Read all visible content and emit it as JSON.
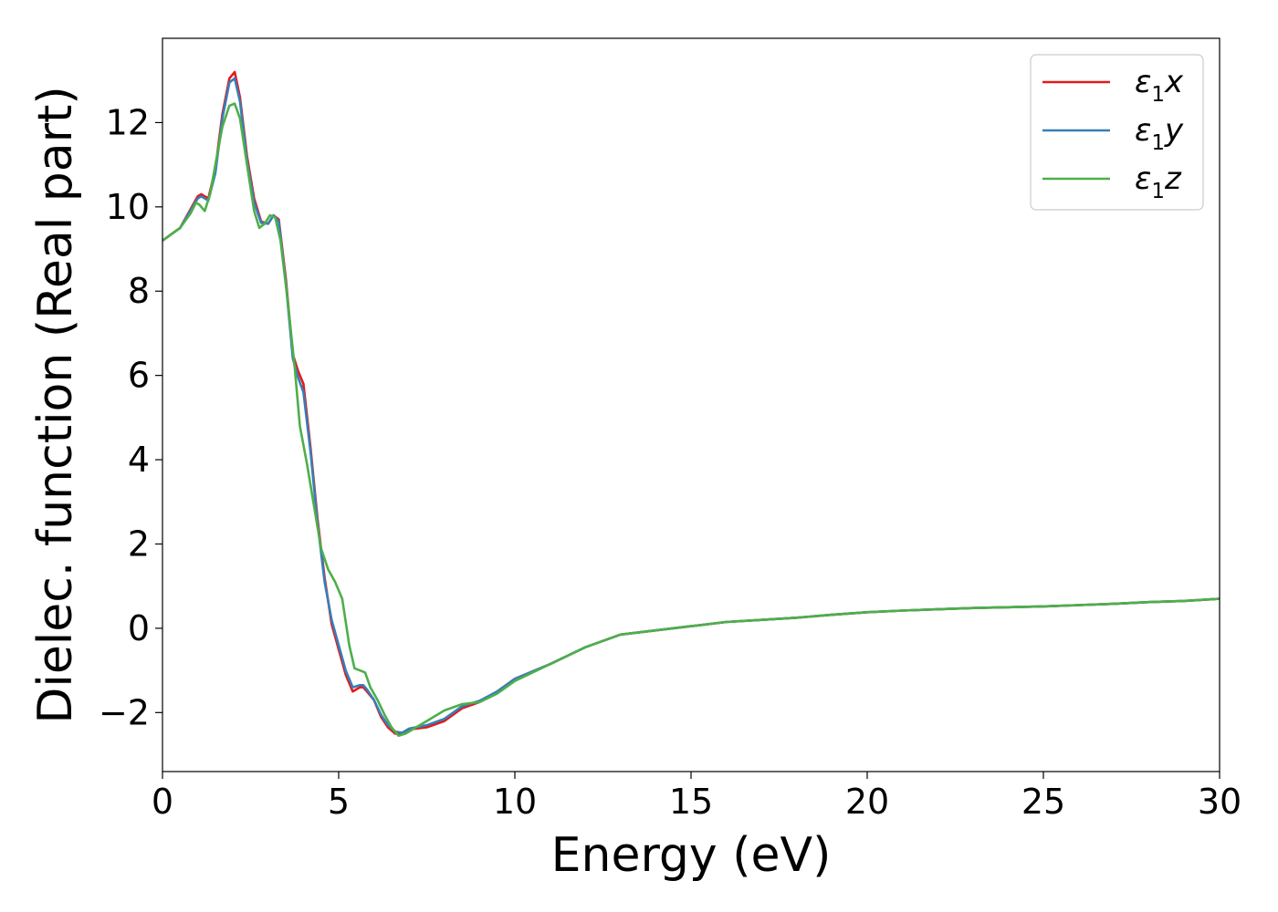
{
  "chart_data": {
    "type": "line",
    "xlabel": "Energy (eV)",
    "ylabel": "Dielec. function (Real part)",
    "xlim": [
      0,
      30
    ],
    "ylim": [
      -3.4,
      14.0
    ],
    "xticks": [
      0,
      5,
      10,
      15,
      20,
      25,
      30
    ],
    "xtick_labels": [
      "0",
      "5",
      "10",
      "15",
      "20",
      "25",
      "30"
    ],
    "yticks": [
      -2,
      0,
      2,
      4,
      6,
      8,
      10,
      12
    ],
    "ytick_labels": [
      "−2",
      "0",
      "2",
      "4",
      "6",
      "8",
      "10",
      "12"
    ],
    "grid": false,
    "legend_position": "top-right",
    "series": [
      {
        "name": "ε₁x",
        "legend_base": "ε",
        "legend_sub": "1",
        "legend_suffix": "x",
        "color": "#e41a1c",
        "x": [
          0,
          0.5,
          0.8,
          1.0,
          1.1,
          1.3,
          1.5,
          1.7,
          1.9,
          2.05,
          2.2,
          2.4,
          2.6,
          2.8,
          3.0,
          3.15,
          3.3,
          3.5,
          3.7,
          3.85,
          4.0,
          4.2,
          4.4,
          4.6,
          4.8,
          5.0,
          5.2,
          5.4,
          5.6,
          5.7,
          5.8,
          6.0,
          6.2,
          6.4,
          6.6,
          6.8,
          7.0,
          7.5,
          8.0,
          8.5,
          9.0,
          9.5,
          10.0,
          11.0,
          12.0,
          13.0,
          14.0,
          15.0,
          16.0,
          17.0,
          18.0,
          19.0,
          20.0,
          21.0,
          22.0,
          23.0,
          24.0,
          25.0,
          26.0,
          27.0,
          28.0,
          29.0,
          30.0
        ],
        "values": [
          9.2,
          9.5,
          9.95,
          10.25,
          10.3,
          10.2,
          10.9,
          12.2,
          13.05,
          13.2,
          12.6,
          11.2,
          10.2,
          9.65,
          9.6,
          9.8,
          9.7,
          8.3,
          6.5,
          6.1,
          5.8,
          4.3,
          2.6,
          1.2,
          0.1,
          -0.5,
          -1.1,
          -1.5,
          -1.4,
          -1.4,
          -1.5,
          -1.7,
          -2.1,
          -2.35,
          -2.5,
          -2.5,
          -2.4,
          -2.35,
          -2.2,
          -1.9,
          -1.75,
          -1.5,
          -1.2,
          -0.85,
          -0.45,
          -0.15,
          -0.05,
          0.05,
          0.15,
          0.2,
          0.25,
          0.32,
          0.38,
          0.42,
          0.45,
          0.48,
          0.5,
          0.52,
          0.55,
          0.58,
          0.62,
          0.65,
          0.7
        ]
      },
      {
        "name": "ε₁y",
        "legend_base": "ε",
        "legend_sub": "1",
        "legend_suffix": "y",
        "color": "#377eb8",
        "x": [
          0,
          0.5,
          0.8,
          1.0,
          1.1,
          1.3,
          1.5,
          1.7,
          1.9,
          2.05,
          2.2,
          2.4,
          2.6,
          2.8,
          3.0,
          3.15,
          3.3,
          3.5,
          3.7,
          3.85,
          4.0,
          4.2,
          4.4,
          4.6,
          4.8,
          5.0,
          5.2,
          5.4,
          5.6,
          5.7,
          5.8,
          6.0,
          6.2,
          6.4,
          6.6,
          6.8,
          7.0,
          7.5,
          8.0,
          8.5,
          9.0,
          9.5,
          10.0,
          11.0,
          12.0,
          13.0,
          14.0,
          15.0,
          16.0,
          17.0,
          18.0,
          19.0,
          20.0,
          21.0,
          22.0,
          23.0,
          24.0,
          25.0,
          26.0,
          27.0,
          28.0,
          29.0,
          30.0
        ],
        "values": [
          9.2,
          9.5,
          9.92,
          10.2,
          10.25,
          10.15,
          10.8,
          12.1,
          12.95,
          13.05,
          12.5,
          11.1,
          10.1,
          9.62,
          9.6,
          9.8,
          9.65,
          8.2,
          6.4,
          5.95,
          5.6,
          4.2,
          2.5,
          1.1,
          0.2,
          -0.4,
          -1.0,
          -1.4,
          -1.35,
          -1.35,
          -1.45,
          -1.7,
          -2.05,
          -2.3,
          -2.45,
          -2.48,
          -2.38,
          -2.3,
          -2.15,
          -1.85,
          -1.72,
          -1.5,
          -1.2,
          -0.85,
          -0.45,
          -0.15,
          -0.05,
          0.05,
          0.15,
          0.2,
          0.25,
          0.32,
          0.38,
          0.42,
          0.45,
          0.48,
          0.5,
          0.52,
          0.55,
          0.58,
          0.62,
          0.65,
          0.7
        ]
      },
      {
        "name": "ε₁z",
        "legend_base": "ε",
        "legend_sub": "1",
        "legend_suffix": "z",
        "color": "#4daf4a",
        "x": [
          0,
          0.5,
          0.8,
          0.95,
          1.05,
          1.2,
          1.35,
          1.5,
          1.7,
          1.9,
          2.05,
          2.2,
          2.4,
          2.6,
          2.75,
          2.9,
          3.05,
          3.2,
          3.35,
          3.55,
          3.75,
          3.9,
          4.1,
          4.3,
          4.5,
          4.7,
          4.9,
          5.1,
          5.3,
          5.45,
          5.6,
          5.75,
          5.9,
          6.1,
          6.3,
          6.5,
          6.7,
          6.9,
          7.2,
          7.5,
          8.0,
          8.5,
          9.0,
          9.5,
          10.0,
          11.0,
          12.0,
          13.0,
          14.0,
          15.0,
          16.0,
          17.0,
          18.0,
          19.0,
          20.0,
          21.0,
          22.0,
          23.0,
          24.0,
          25.0,
          26.0,
          27.0,
          28.0,
          29.0,
          30.0
        ],
        "values": [
          9.2,
          9.5,
          9.85,
          10.1,
          10.05,
          9.9,
          10.3,
          11.0,
          11.9,
          12.4,
          12.45,
          12.1,
          11.0,
          9.9,
          9.5,
          9.6,
          9.8,
          9.75,
          9.2,
          7.8,
          6.2,
          4.8,
          3.9,
          2.9,
          1.9,
          1.4,
          1.1,
          0.7,
          -0.4,
          -0.95,
          -1.0,
          -1.05,
          -1.4,
          -1.7,
          -2.05,
          -2.35,
          -2.55,
          -2.5,
          -2.35,
          -2.2,
          -1.95,
          -1.8,
          -1.75,
          -1.55,
          -1.25,
          -0.85,
          -0.45,
          -0.15,
          -0.05,
          0.05,
          0.15,
          0.2,
          0.25,
          0.32,
          0.38,
          0.42,
          0.45,
          0.48,
          0.5,
          0.52,
          0.55,
          0.58,
          0.62,
          0.65,
          0.7
        ]
      }
    ]
  }
}
